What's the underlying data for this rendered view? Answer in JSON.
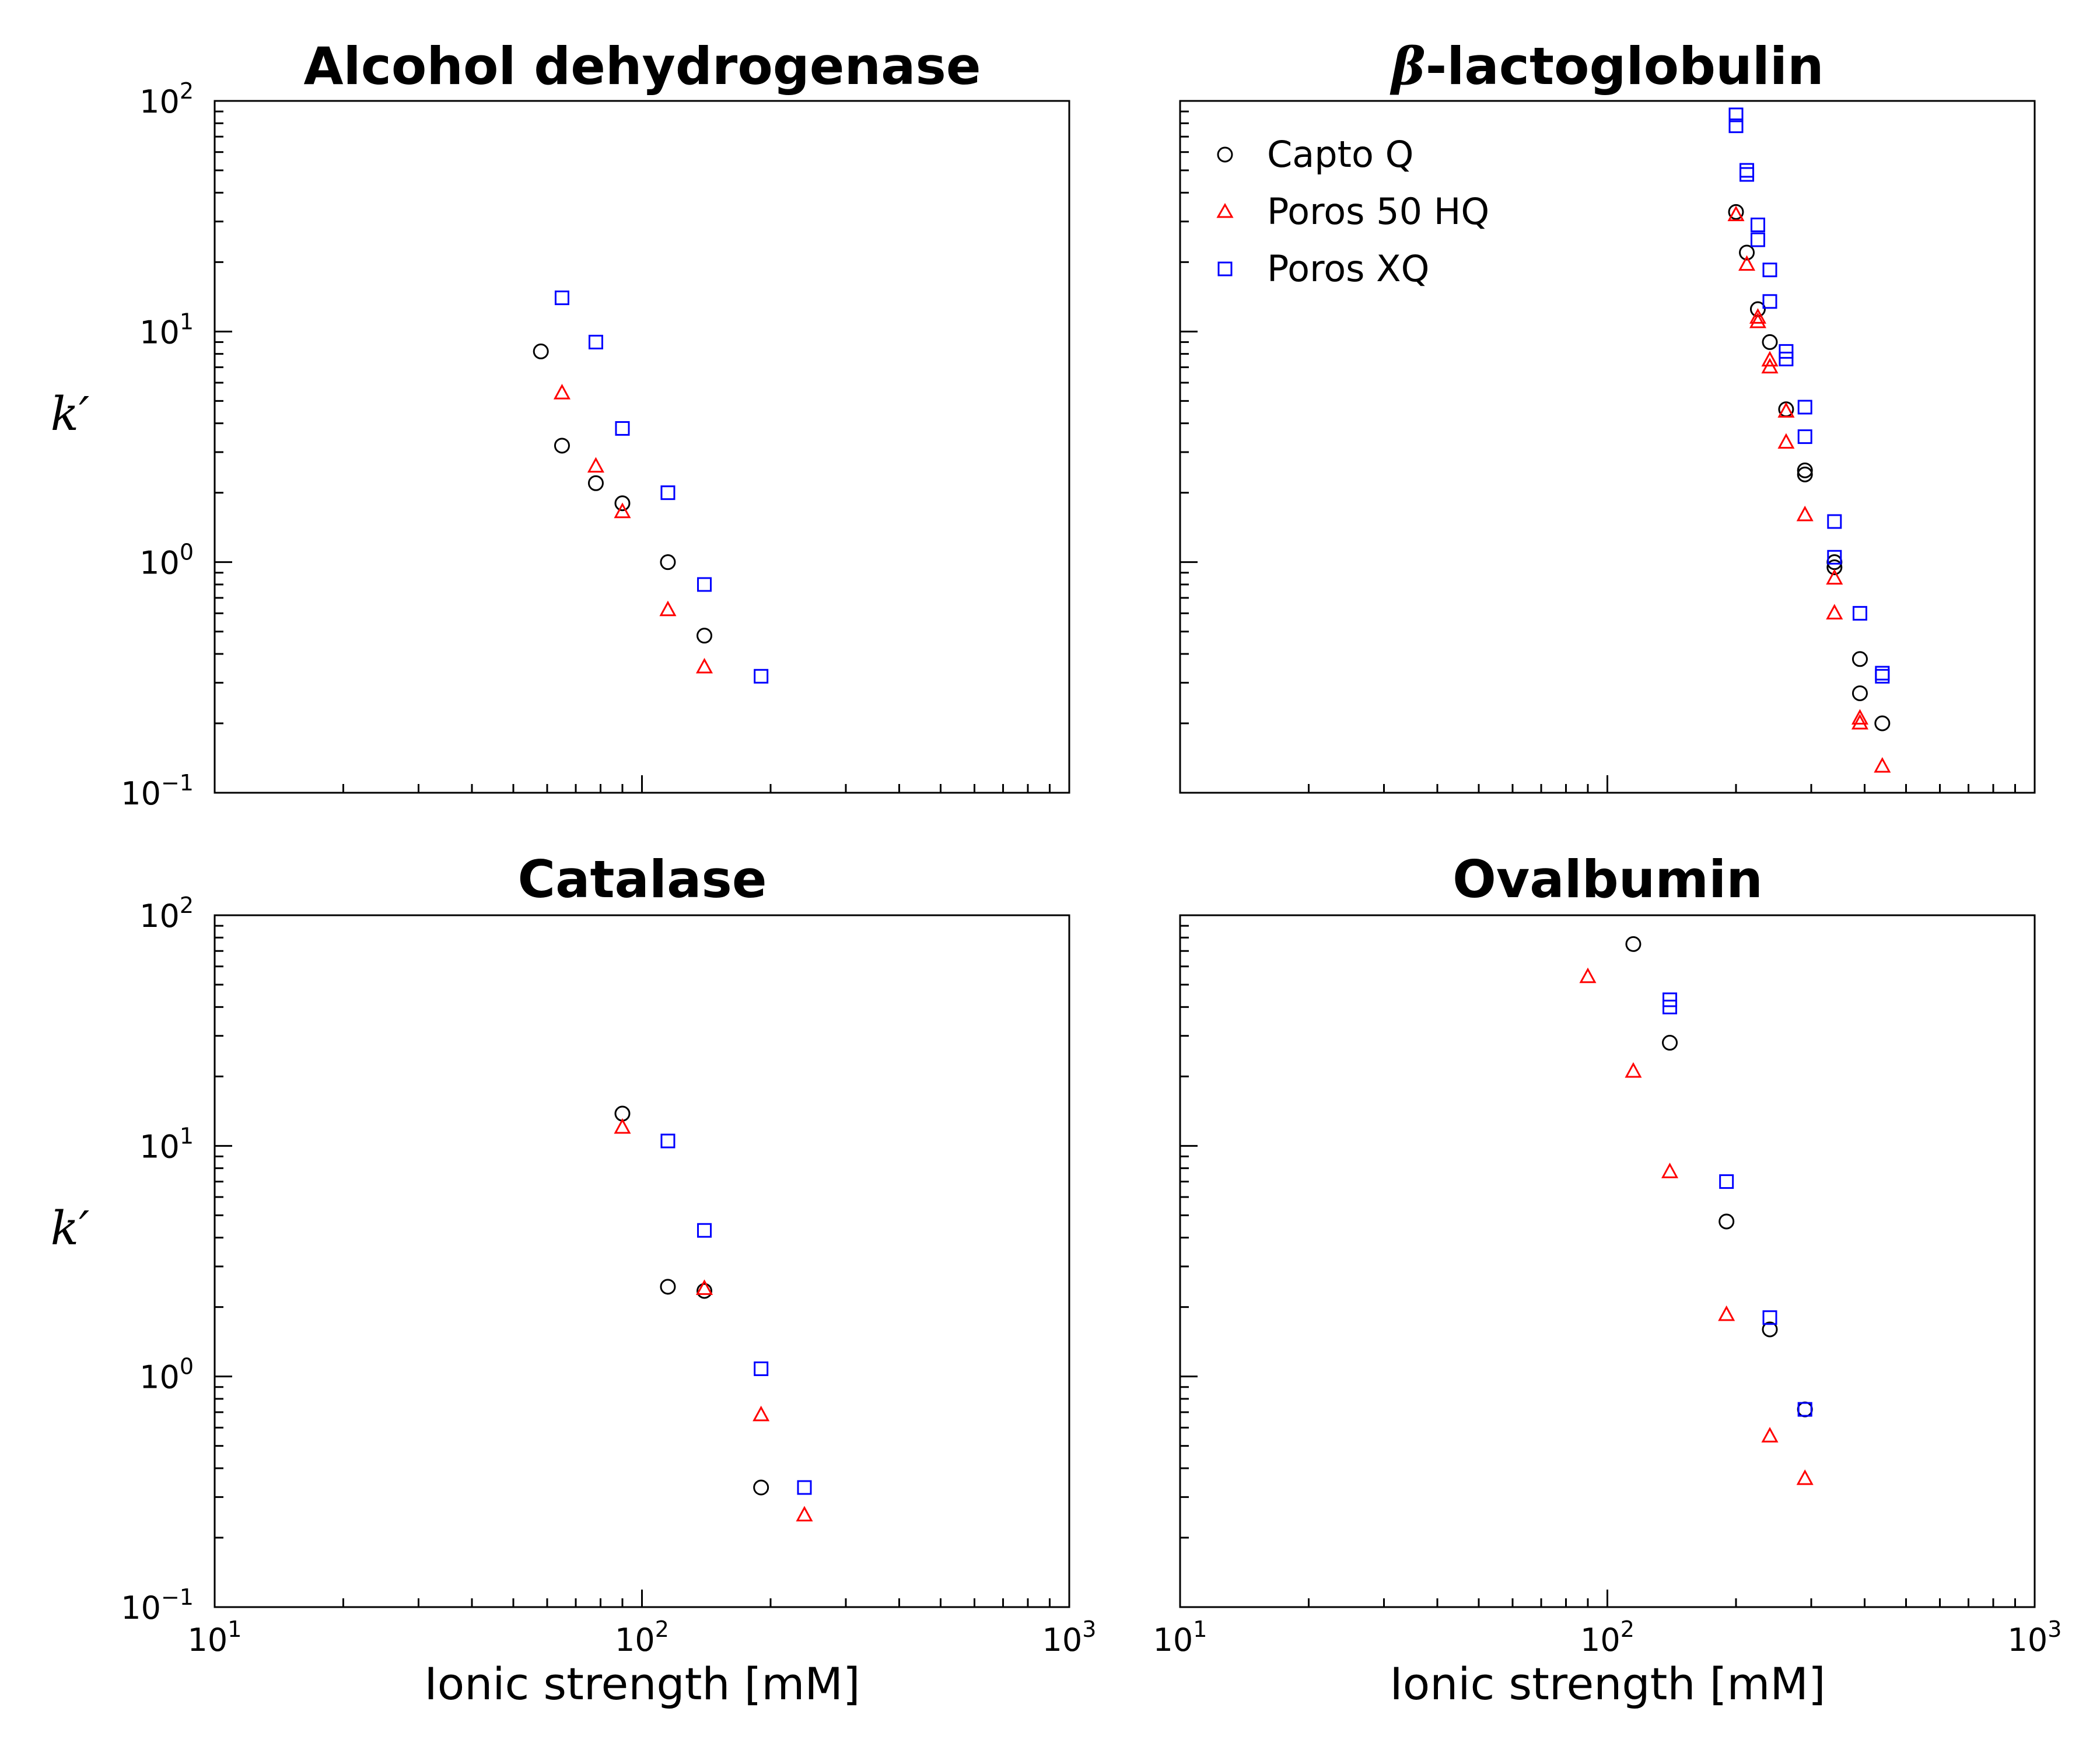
{
  "chart_data": [
    {
      "type": "scatter",
      "title": "Alcohol dehydrogenase",
      "xlabel": "",
      "ylabel": "k′",
      "xscale": "log",
      "yscale": "log",
      "xlim": [
        10,
        1000
      ],
      "ylim": [
        0.1,
        100
      ],
      "x_ticks": [
        "10",
        "10",
        "10"
      ],
      "x_tick_exponents": [
        "1",
        "2",
        "3"
      ],
      "y_ticks": [
        "10",
        "10",
        "10",
        "10"
      ],
      "y_tick_exponents": [
        "2",
        "1",
        "0",
        "−1"
      ],
      "series": [
        {
          "name": "Capto Q",
          "marker": "circle",
          "color": "#000000",
          "points": [
            [
              58,
              8.2
            ],
            [
              65,
              3.2
            ],
            [
              78,
              2.2
            ],
            [
              90,
              1.8
            ],
            [
              115,
              1.0
            ],
            [
              140,
              0.48
            ]
          ]
        },
        {
          "name": "Poros 50 HQ",
          "marker": "triangle",
          "color": "#ff0000",
          "points": [
            [
              65,
              5.4
            ],
            [
              78,
              2.6
            ],
            [
              90,
              1.65
            ],
            [
              115,
              0.62
            ],
            [
              140,
              0.35
            ]
          ]
        },
        {
          "name": "Poros XQ",
          "marker": "square",
          "color": "#0000ff",
          "points": [
            [
              65,
              14.0
            ],
            [
              78,
              9.0
            ],
            [
              90,
              3.8
            ],
            [
              115,
              2.0
            ],
            [
              140,
              0.8
            ],
            [
              190,
              0.32
            ]
          ]
        }
      ]
    },
    {
      "type": "scatter",
      "title": "β-lactoglobulin",
      "title_greek": "β",
      "title_rest": "-lactoglobulin",
      "xlabel": "",
      "ylabel": "",
      "xscale": "log",
      "yscale": "log",
      "xlim": [
        10,
        1000
      ],
      "ylim": [
        0.1,
        100
      ],
      "legend": {
        "position": "top-left",
        "entries": [
          "Capto Q",
          "Poros 50 HQ",
          "Poros XQ"
        ]
      },
      "series": [
        {
          "name": "Capto Q",
          "marker": "circle",
          "color": "#000000",
          "points": [
            [
              200,
              33
            ],
            [
              212,
              22
            ],
            [
              225,
              12.5
            ],
            [
              240,
              9.0
            ],
            [
              262,
              4.6
            ],
            [
              290,
              2.5
            ],
            [
              290,
              2.4
            ],
            [
              340,
              1.0
            ],
            [
              340,
              0.95
            ],
            [
              390,
              0.38
            ],
            [
              390,
              0.27
            ],
            [
              440,
              0.2
            ]
          ]
        },
        {
          "name": "Poros 50 HQ",
          "marker": "triangle",
          "color": "#ff0000",
          "points": [
            [
              200,
              32
            ],
            [
              212,
              19.5
            ],
            [
              225,
              11.5
            ],
            [
              225,
              11.0
            ],
            [
              240,
              7.5
            ],
            [
              240,
              7.0
            ],
            [
              262,
              4.5
            ],
            [
              262,
              3.3
            ],
            [
              290,
              1.6
            ],
            [
              340,
              0.85
            ],
            [
              340,
              0.6
            ],
            [
              390,
              0.21
            ],
            [
              390,
              0.2
            ],
            [
              440,
              0.13
            ]
          ]
        },
        {
          "name": "Poros XQ",
          "marker": "square",
          "color": "#0000ff",
          "points": [
            [
              200,
              87
            ],
            [
              200,
              78
            ],
            [
              212,
              50
            ],
            [
              212,
              48
            ],
            [
              225,
              29
            ],
            [
              225,
              25
            ],
            [
              240,
              18.5
            ],
            [
              240,
              13.5
            ],
            [
              262,
              8.2
            ],
            [
              262,
              7.6
            ],
            [
              290,
              4.7
            ],
            [
              290,
              3.5
            ],
            [
              340,
              1.5
            ],
            [
              340,
              1.05
            ],
            [
              390,
              0.6
            ],
            [
              440,
              0.33
            ],
            [
              440,
              0.32
            ]
          ]
        }
      ]
    },
    {
      "type": "scatter",
      "title": "Catalase",
      "xlabel": "Ionic strength [mM]",
      "ylabel": "k′",
      "xscale": "log",
      "yscale": "log",
      "xlim": [
        10,
        1000
      ],
      "ylim": [
        0.1,
        100
      ],
      "series": [
        {
          "name": "Capto Q",
          "marker": "circle",
          "color": "#000000",
          "points": [
            [
              90,
              13.8
            ],
            [
              115,
              2.45
            ],
            [
              140,
              2.35
            ],
            [
              190,
              0.33
            ]
          ]
        },
        {
          "name": "Poros 50 HQ",
          "marker": "triangle",
          "color": "#ff0000",
          "points": [
            [
              90,
              12.0
            ],
            [
              140,
              2.4
            ],
            [
              190,
              0.68
            ],
            [
              240,
              0.25
            ]
          ]
        },
        {
          "name": "Poros XQ",
          "marker": "square",
          "color": "#0000ff",
          "points": [
            [
              115,
              10.5
            ],
            [
              140,
              4.3
            ],
            [
              190,
              1.08
            ],
            [
              240,
              0.33
            ]
          ]
        }
      ]
    },
    {
      "type": "scatter",
      "title": "Ovalbumin",
      "xlabel": "Ionic strength [mM]",
      "ylabel": "",
      "xscale": "log",
      "yscale": "log",
      "xlim": [
        10,
        1000
      ],
      "ylim": [
        0.1,
        100
      ],
      "series": [
        {
          "name": "Capto Q",
          "marker": "circle",
          "color": "#000000",
          "points": [
            [
              115,
              75
            ],
            [
              140,
              28
            ],
            [
              190,
              4.7
            ],
            [
              240,
              1.6
            ],
            [
              290,
              0.72
            ]
          ]
        },
        {
          "name": "Poros 50 HQ",
          "marker": "triangle",
          "color": "#ff0000",
          "points": [
            [
              90,
              54
            ],
            [
              115,
              21
            ],
            [
              140,
              7.7
            ],
            [
              190,
              1.85
            ],
            [
              240,
              0.55
            ],
            [
              290,
              0.36
            ]
          ]
        },
        {
          "name": "Poros XQ",
          "marker": "square",
          "color": "#0000ff",
          "points": [
            [
              140,
              43
            ],
            [
              140,
              40
            ],
            [
              190,
              7.0
            ],
            [
              240,
              1.8
            ],
            [
              290,
              0.72
            ]
          ]
        }
      ]
    }
  ]
}
